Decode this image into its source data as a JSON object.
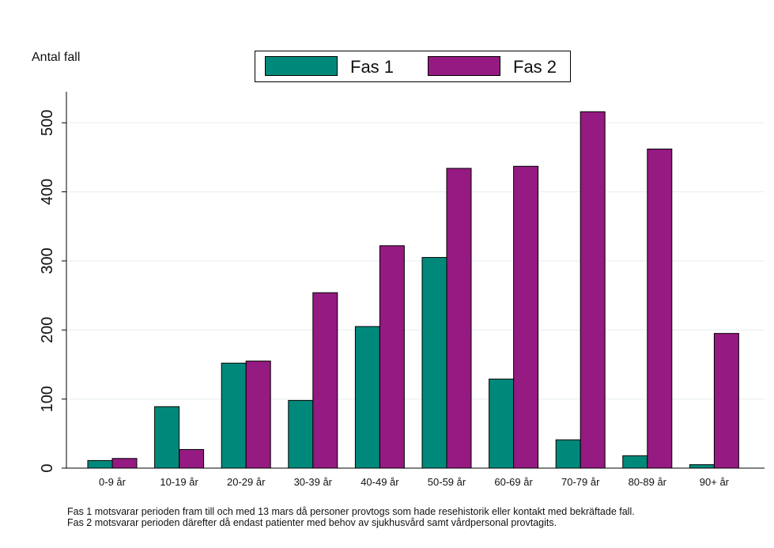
{
  "chart_data": {
    "type": "bar",
    "ylabel": "Antal fall",
    "categories": [
      "0-9 år",
      "10-19 år",
      "20-29 år",
      "30-39 år",
      "40-49 år",
      "50-59 år",
      "60-69 år",
      "70-79 år",
      "80-89 år",
      "90+ år"
    ],
    "series": [
      {
        "name": "Fas 1",
        "color": "#00897b",
        "values": [
          11,
          89,
          152,
          98,
          205,
          305,
          129,
          41,
          18,
          5
        ]
      },
      {
        "name": "Fas 2",
        "color": "#951a81",
        "values": [
          14,
          27,
          155,
          254,
          322,
          434,
          437,
          516,
          462,
          195
        ]
      }
    ],
    "ylim": [
      0,
      545
    ],
    "yticks": [
      0,
      100,
      200,
      300,
      400,
      500
    ],
    "grid": true,
    "legend_position": "top"
  },
  "footnote": {
    "line1": "Fas 1 motsvarar perioden fram till och med 13 mars då personer provtogs som hade resehistorik eller kontakt med bekräftade fall.",
    "line2": "Fas 2 motsvarar perioden därefter då endast patienter med behov av sjukhusvård samt vårdpersonal provtagits."
  }
}
